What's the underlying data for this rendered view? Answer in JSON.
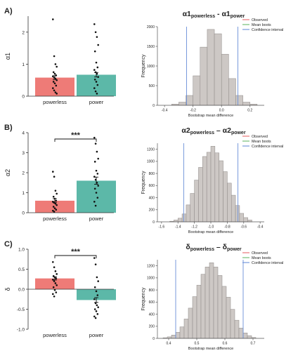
{
  "figure": {
    "panels": [
      {
        "label": "A)",
        "bar": {
          "type": "bar",
          "ylabel": "α1",
          "categories": [
            "powerless",
            "power"
          ],
          "values": [
            0.58,
            0.67
          ],
          "errors": [
            0.06,
            0.07
          ],
          "ylim": [
            0,
            2.5
          ],
          "yticks": [
            "0",
            "1",
            "2"
          ],
          "ytick_values": [
            0,
            1,
            2
          ],
          "colors": [
            "#ee7b77",
            "#5cb8a8"
          ],
          "significance": "",
          "points": [
            [
              2.4,
              1.25,
              1.0,
              0.92,
              0.75,
              0.7,
              0.65,
              0.62,
              0.58,
              0.55,
              0.5,
              0.45,
              0.4,
              0.33,
              0.25,
              0.18,
              0.12,
              0.08
            ],
            [
              2.25,
              2.0,
              1.85,
              1.6,
              1.4,
              1.05,
              0.9,
              0.82,
              0.75,
              0.7,
              0.6,
              0.52,
              0.45,
              0.35,
              0.25,
              0.15,
              0.08
            ]
          ]
        },
        "hist": {
          "type": "bar",
          "title_main": "α1",
          "title_sub1": "powerless",
          "title_sep": " - α1",
          "title_sub2": "power",
          "xlabel": "Bootstrap mean difference",
          "ylabel": "Frequency",
          "xlim": [
            -0.45,
            0.3
          ],
          "ylim": [
            0,
            2000
          ],
          "xticks": [
            "-0.4",
            "-0.2",
            "0.0",
            "0.2"
          ],
          "xtick_values": [
            -0.4,
            -0.2,
            0.0,
            0.2
          ],
          "yticks": [
            "0",
            "500",
            "1000",
            "1500",
            "2000"
          ],
          "ytick_values": [
            0,
            500,
            1000,
            1500,
            2000
          ],
          "bin_edges": [
            -0.35,
            -0.3,
            -0.25,
            -0.2,
            -0.15,
            -0.1,
            -0.05,
            0.0,
            0.05,
            0.1,
            0.15,
            0.2,
            0.25
          ],
          "counts": [
            30,
            80,
            250,
            750,
            1480,
            1930,
            1820,
            1300,
            680,
            250,
            80,
            30
          ],
          "ci": [
            -0.245,
            0.115
          ],
          "mean": -0.085,
          "legend": [
            "Observed",
            "Mean boots",
            "Confidence interval"
          ]
        }
      },
      {
        "label": "B)",
        "bar": {
          "type": "bar",
          "ylabel": "α2",
          "categories": [
            "powerless",
            "power"
          ],
          "values": [
            0.6,
            1.6
          ],
          "errors": [
            0.1,
            0.18
          ],
          "ylim": [
            0,
            4
          ],
          "yticks": [
            "0",
            "1",
            "2",
            "3",
            "4"
          ],
          "ytick_values": [
            0,
            1,
            2,
            3,
            4
          ],
          "colors": [
            "#ee7b77",
            "#5cb8a8"
          ],
          "significance": "***",
          "points": [
            [
              2.05,
              1.8,
              1.1,
              0.95,
              0.8,
              0.7,
              0.6,
              0.55,
              0.5,
              0.45,
              0.38,
              0.3,
              0.22,
              0.15,
              0.1,
              0.05
            ],
            [
              3.75,
              3.45,
              3.05,
              2.7,
              2.55,
              2.1,
              1.95,
              1.8,
              1.65,
              1.5,
              1.35,
              1.2,
              1.0,
              0.75,
              0.55,
              0.35
            ]
          ]
        },
        "hist": {
          "type": "bar",
          "title_main": "α2",
          "title_sub1": "powerless",
          "title_sep": " – α2",
          "title_sub2": "power",
          "xlabel": "Bootstrap mean difference",
          "ylabel": "Frequency",
          "xlim": [
            -1.65,
            -0.35
          ],
          "ylim": [
            0,
            1300
          ],
          "xticks": [
            "-1.6",
            "-1.4",
            "-1.2",
            "-1.0",
            "-0.8",
            "-0.6",
            "-0.4"
          ],
          "xtick_values": [
            -1.6,
            -1.4,
            -1.2,
            -1.0,
            -0.8,
            -0.6,
            -0.4
          ],
          "yticks": [
            "0",
            "200",
            "400",
            "600",
            "800",
            "1000",
            "1200"
          ],
          "ytick_values": [
            0,
            200,
            400,
            600,
            800,
            1000,
            1200
          ],
          "bin_edges": [
            -1.5,
            -1.45,
            -1.4,
            -1.35,
            -1.3,
            -1.25,
            -1.2,
            -1.15,
            -1.1,
            -1.05,
            -1.0,
            -0.95,
            -0.9,
            -0.85,
            -0.8,
            -0.75,
            -0.7,
            -0.65,
            -0.6,
            -0.55,
            -0.5
          ],
          "counts": [
            10,
            30,
            60,
            130,
            280,
            470,
            690,
            900,
            1080,
            1150,
            1250,
            1140,
            1010,
            830,
            640,
            440,
            270,
            140,
            70,
            30
          ],
          "ci": [
            -1.33,
            -0.67
          ],
          "mean": -1.0,
          "legend": [
            "Observed",
            "Mean boots",
            "Confidence interval"
          ]
        }
      },
      {
        "label": "C)",
        "bar": {
          "type": "bar",
          "ylabel": "δ",
          "categories": [
            "powerless",
            "power"
          ],
          "values": [
            0.27,
            -0.27
          ],
          "errors": [
            0.04,
            0.06
          ],
          "ylim": [
            -1.0,
            1.0
          ],
          "yticks": [
            "-1.0",
            "-0.5",
            "0.0",
            "0.5",
            "1.0"
          ],
          "ytick_values": [
            -1.0,
            -0.5,
            0.0,
            0.5,
            1.0
          ],
          "colors": [
            "#ee7b77",
            "#5cb8a8"
          ],
          "significance": "***",
          "points": [
            [
              0.68,
              0.55,
              0.45,
              0.38,
              0.33,
              0.3,
              0.27,
              0.24,
              0.2,
              0.15,
              0.1,
              0.05,
              -0.02,
              -0.08,
              -0.12,
              -0.18
            ],
            [
              0.78,
              0.62,
              0.3,
              0.2,
              0.05,
              -0.05,
              -0.15,
              -0.25,
              -0.35,
              -0.4,
              -0.45,
              -0.5,
              -0.55,
              -0.62,
              -0.68,
              -0.72
            ]
          ]
        },
        "hist": {
          "type": "bar",
          "title_main": "δ",
          "title_sub1": "powerless",
          "title_sep": " – δ",
          "title_sub2": "power",
          "xlabel": "Bootstrap mean difference",
          "ylabel": "Frequency",
          "xlim": [
            0.36,
            0.74
          ],
          "ylim": [
            0,
            1300
          ],
          "xticks": [
            "0.4",
            "0.5",
            "0.6",
            "0.7"
          ],
          "xtick_values": [
            0.4,
            0.5,
            0.6,
            0.7
          ],
          "yticks": [
            "0",
            "200",
            "400",
            "600",
            "800",
            "1000",
            "1200"
          ],
          "ytick_values": [
            0,
            200,
            400,
            600,
            800,
            1000,
            1200
          ],
          "bin_edges": [
            0.38,
            0.395,
            0.41,
            0.425,
            0.44,
            0.455,
            0.47,
            0.485,
            0.5,
            0.515,
            0.53,
            0.545,
            0.56,
            0.575,
            0.59,
            0.605,
            0.62,
            0.635,
            0.65,
            0.665,
            0.68,
            0.695,
            0.71
          ],
          "counts": [
            10,
            25,
            55,
            100,
            190,
            320,
            500,
            690,
            880,
            1060,
            1180,
            1250,
            1180,
            1040,
            860,
            680,
            480,
            300,
            170,
            90,
            45,
            15
          ],
          "ci": [
            0.425,
            0.665
          ],
          "mean": 0.545,
          "legend": [
            "Observed",
            "Mean boots",
            "Confidence interval"
          ]
        }
      }
    ],
    "legend_colors": [
      "#e8696b",
      "#69b96a",
      "#6a8fd8"
    ],
    "hist_fill": "#cdc8c5",
    "hist_stroke": "#8d8886"
  }
}
